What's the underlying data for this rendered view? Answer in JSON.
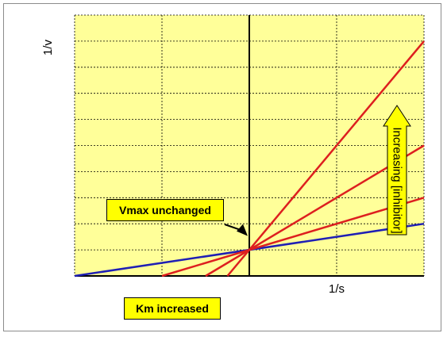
{
  "chart_data": {
    "type": "line",
    "xlabel": "1/s",
    "ylabel": "1/v",
    "xlim": [
      -1,
      1
    ],
    "ylim": [
      0,
      1
    ],
    "grid": true,
    "series": [
      {
        "color": "#1f1fb4",
        "x": [
          -1,
          1
        ],
        "y": [
          0,
          0.2
        ]
      },
      {
        "color": "#dd1f1f",
        "x": [
          -0.5,
          1
        ],
        "y": [
          0,
          0.3
        ]
      },
      {
        "color": "#dd1f1f",
        "x": [
          -0.25,
          1
        ],
        "y": [
          0,
          0.5
        ]
      },
      {
        "color": "#dd1f1f",
        "x": [
          -0.125,
          1
        ],
        "y": [
          0,
          0.9
        ]
      }
    ],
    "annotations": {
      "vmax": "Vmax unchanged",
      "km": "Km increased",
      "arrow": "Increasing [inhibitor]"
    }
  },
  "colors": {
    "plot_background": "#ffff99",
    "callout_fill": "#ffff00",
    "inhibitor_line": "#dd1f1f",
    "control_line": "#1f1fb4"
  }
}
